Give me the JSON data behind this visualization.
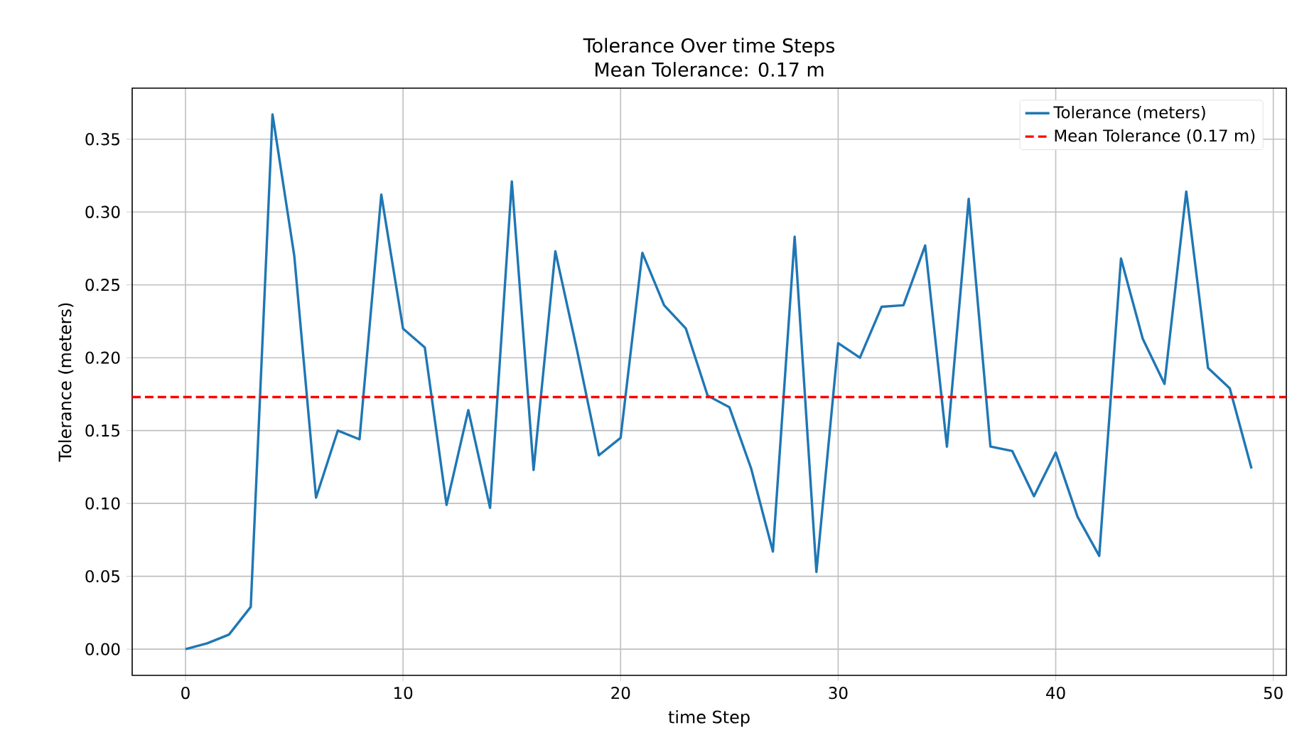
{
  "chart_data": {
    "type": "line",
    "title": "Tolerance Over time Steps",
    "subtitle": "Mean Tolerance: 0.17 m",
    "xlabel": "time Step",
    "ylabel": "Tolerance (meters)",
    "x": [
      0,
      1,
      2,
      3,
      4,
      5,
      6,
      7,
      8,
      9,
      10,
      11,
      12,
      13,
      14,
      15,
      16,
      17,
      18,
      19,
      20,
      21,
      22,
      23,
      24,
      25,
      26,
      27,
      28,
      29,
      30,
      31,
      32,
      33,
      34,
      35,
      36,
      37,
      38,
      39,
      40,
      41,
      42,
      43,
      44,
      45,
      46,
      47,
      48,
      49
    ],
    "series": [
      {
        "name": "Tolerance (meters)",
        "color": "#1f77b4",
        "values": [
          0.0,
          0.004,
          0.01,
          0.029,
          0.367,
          0.27,
          0.104,
          0.15,
          0.144,
          0.312,
          0.22,
          0.207,
          0.099,
          0.164,
          0.097,
          0.321,
          0.123,
          0.273,
          0.205,
          0.133,
          0.145,
          0.272,
          0.236,
          0.22,
          0.174,
          0.166,
          0.124,
          0.067,
          0.283,
          0.053,
          0.21,
          0.2,
          0.235,
          0.236,
          0.277,
          0.139,
          0.309,
          0.139,
          0.136,
          0.105,
          0.135,
          0.091,
          0.064,
          0.268,
          0.213,
          0.182,
          0.314,
          0.193,
          0.179,
          0.124
        ]
      }
    ],
    "ref_lines": [
      {
        "axis": "y",
        "value": 0.173,
        "label": "Mean Tolerance (0.17 m)",
        "color": "#ff0000",
        "line_style": "dashed"
      }
    ],
    "xlim": [
      -2.45,
      50.6
    ],
    "ylim": [
      -0.018,
      0.385
    ],
    "xticks": [
      0,
      10,
      20,
      30,
      40,
      50
    ],
    "yticks": [
      {
        "value": 0,
        "label": "0.00"
      },
      {
        "value": 0.05,
        "label": "0.05"
      },
      {
        "value": 0.1,
        "label": "0.10"
      },
      {
        "value": 0.15,
        "label": "0.15"
      },
      {
        "value": 0.2,
        "label": "0.20"
      },
      {
        "value": 0.25,
        "label": "0.25"
      },
      {
        "value": 0.3,
        "label": "0.30"
      },
      {
        "value": 0.35,
        "label": "0.35"
      }
    ],
    "grid": true,
    "legend": "top right"
  }
}
